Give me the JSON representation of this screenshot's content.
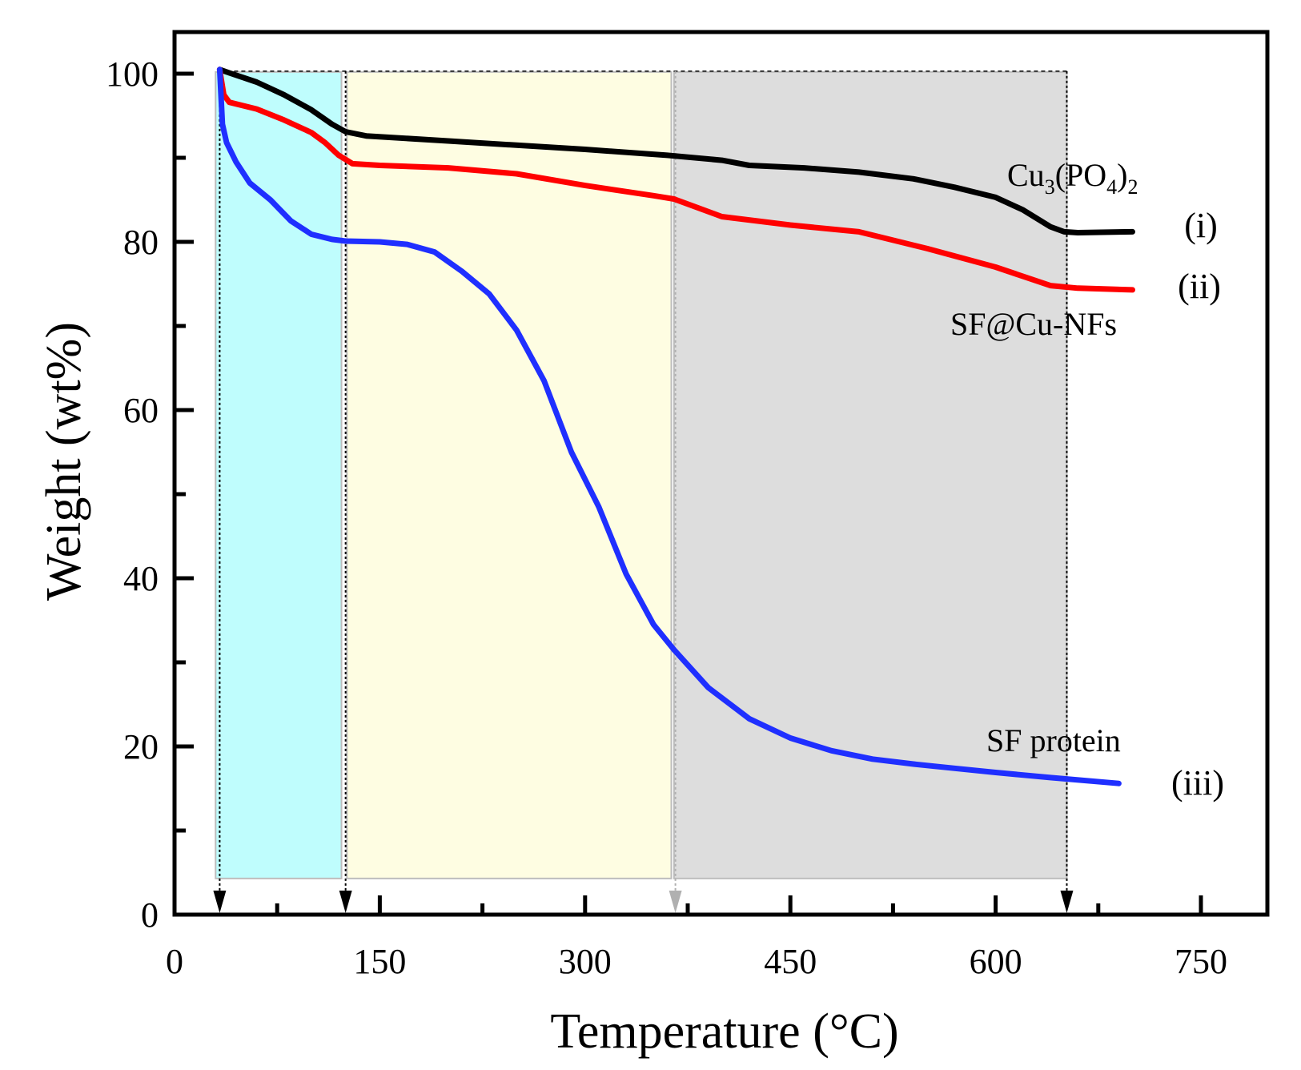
{
  "chart_data": {
    "type": "line",
    "title": "",
    "xlabel": "Temperature (°C)",
    "ylabel": "Weight (wt%)",
    "xlim": [
      0,
      800
    ],
    "ylim": [
      0,
      105
    ],
    "x_ticks": [
      0,
      150,
      300,
      450,
      600,
      750
    ],
    "x_minor_ticks": [
      75,
      225,
      375,
      525,
      675
    ],
    "y_ticks": [
      0,
      20,
      40,
      60,
      80,
      100
    ],
    "y_minor_ticks": [
      10,
      30,
      50,
      70,
      90
    ],
    "regions": [
      {
        "name": "region-1",
        "x_start": 30,
        "x_end": 122,
        "color": "#bffdfd"
      },
      {
        "name": "region-2",
        "x_start": 126,
        "x_end": 363,
        "color": "#fefde2"
      },
      {
        "name": "region-3",
        "x_start": 365,
        "x_end": 652,
        "color": "#dddddd"
      }
    ],
    "markers": [
      {
        "x": 33,
        "color": "#000000"
      },
      {
        "x": 125,
        "color": "#000000"
      },
      {
        "x": 366,
        "color": "#b0b0b0"
      },
      {
        "x": 652,
        "color": "#000000"
      }
    ],
    "series": [
      {
        "name": "Cu3(PO4)2",
        "label_main": "Cu",
        "label_sub1": "3",
        "label_mid": "(PO",
        "label_sub2": "4",
        "label_end": ")",
        "label_sub3": "2",
        "roman": "(i)",
        "color": "#000000",
        "x": [
          33,
          40,
          60,
          80,
          100,
          115,
          125,
          140,
          200,
          250,
          300,
          360,
          400,
          420,
          460,
          500,
          540,
          570,
          600,
          620,
          640,
          650,
          660,
          700
        ],
        "y": [
          100.5,
          100.1,
          99.0,
          97.5,
          95.7,
          94.0,
          93.1,
          92.6,
          92.0,
          91.5,
          91.0,
          90.3,
          89.7,
          89.1,
          88.8,
          88.3,
          87.5,
          86.5,
          85.3,
          83.8,
          81.8,
          81.2,
          81.1,
          81.2
        ]
      },
      {
        "name": "SF@Cu-NFs",
        "label_main": "SF@Cu-NFs",
        "roman": "(ii)",
        "color": "#ff0000",
        "x": [
          33,
          36,
          40,
          60,
          80,
          100,
          110,
          120,
          130,
          150,
          200,
          250,
          300,
          350,
          365,
          400,
          450,
          500,
          550,
          600,
          640,
          660,
          700
        ],
        "y": [
          100.5,
          97.5,
          96.6,
          95.8,
          94.5,
          93.0,
          91.8,
          90.3,
          89.3,
          89.1,
          88.8,
          88.1,
          86.7,
          85.5,
          85.1,
          83.0,
          82.0,
          81.2,
          79.2,
          77.0,
          74.8,
          74.5,
          74.3
        ]
      },
      {
        "name": "SF protein",
        "label_main": "SF protein",
        "roman": "(iii)",
        "color": "#1f2fff",
        "x": [
          33,
          35,
          38,
          45,
          55,
          70,
          85,
          100,
          115,
          125,
          150,
          170,
          190,
          210,
          230,
          250,
          270,
          290,
          310,
          330,
          350,
          365,
          390,
          420,
          450,
          480,
          510,
          540,
          570,
          600,
          640,
          690
        ],
        "y": [
          100.5,
          94.0,
          91.8,
          89.5,
          87.0,
          85.0,
          82.5,
          80.9,
          80.3,
          80.1,
          80.0,
          79.7,
          78.8,
          76.5,
          73.8,
          69.5,
          63.5,
          55.0,
          48.5,
          40.5,
          34.5,
          31.5,
          27.0,
          23.3,
          21.0,
          19.5,
          18.5,
          17.9,
          17.4,
          16.9,
          16.3,
          15.6
        ]
      }
    ]
  }
}
